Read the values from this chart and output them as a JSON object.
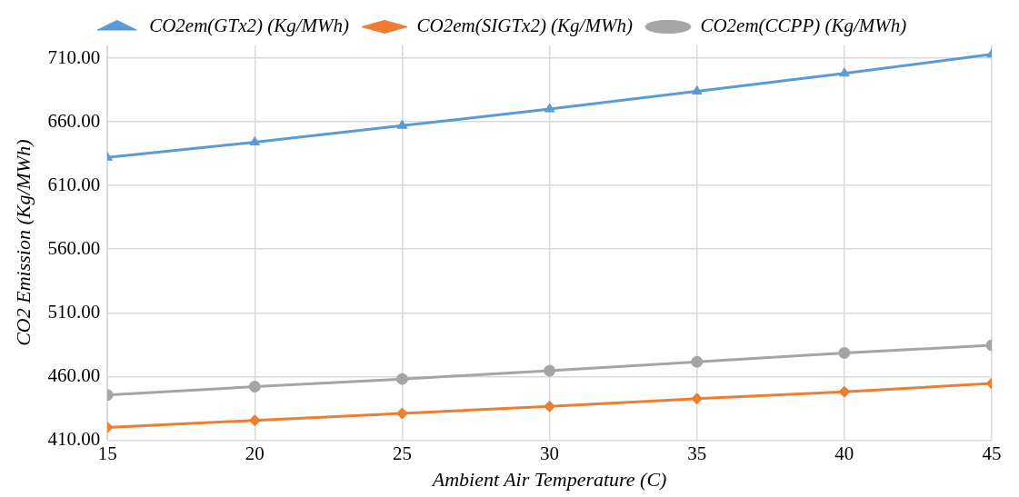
{
  "chart_data": {
    "type": "line",
    "xlabel": "Ambient Air Temperature (C)",
    "ylabel": "CO2 Emission (Kg/MWh)",
    "x": [
      15,
      20,
      25,
      30,
      35,
      40,
      45
    ],
    "series": [
      {
        "name": "CO2em(GTx2) (Kg/MWh)",
        "color": "#5b9bd5",
        "marker": "triangle",
        "values": [
          632,
          644,
          657,
          670,
          684,
          698,
          713
        ]
      },
      {
        "name": "CO2em(SIGTx2) (Kg/MWh)",
        "color": "#ed7d31",
        "marker": "diamond",
        "values": [
          420,
          425.5,
          431,
          436.5,
          442.5,
          448,
          454.5
        ]
      },
      {
        "name": "CO2em(CCPP) (Kg/MWh)",
        "color": "#a5a5a5",
        "marker": "circle",
        "values": [
          445.5,
          452,
          458,
          464.5,
          471.5,
          478.5,
          484.5
        ]
      }
    ],
    "xlim": [
      15,
      45
    ],
    "xticks": [
      15,
      20,
      25,
      30,
      35,
      40,
      45
    ],
    "ylim": [
      410,
      720
    ],
    "yticks": [
      {
        "value": 410,
        "label": "410.00"
      },
      {
        "value": 460,
        "label": "460.00"
      },
      {
        "value": 510,
        "label": "510.00"
      },
      {
        "value": 560,
        "label": "560.00"
      },
      {
        "value": 610,
        "label": "610.00"
      },
      {
        "value": 660,
        "label": "660.00"
      },
      {
        "value": 710,
        "label": "710.00"
      }
    ],
    "grid": true,
    "legend": "top",
    "line_style": "solid"
  }
}
